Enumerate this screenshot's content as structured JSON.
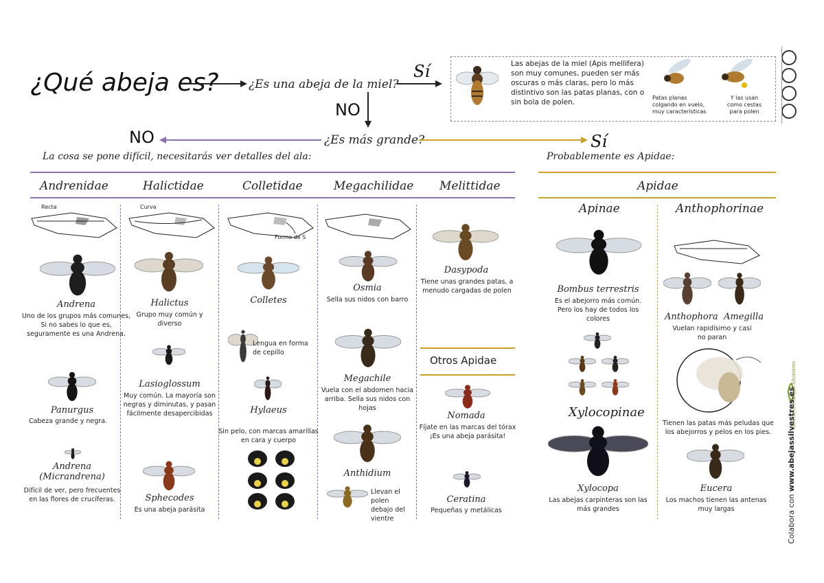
{
  "title": "¿Qué abeja es?",
  "q_honey": "¿Es una abeja de la miel?",
  "si1": "Sí",
  "no1": "NO",
  "q_bigger": "¿Es más grande?",
  "no2": "NO",
  "si2": "Sí",
  "left_note": "La cosa se pone difícil, necesitarás ver detalles del ala:",
  "right_note": "Probablemente es Apidae:",
  "honey_box": {
    "text": "Las abejas de la miel (Apis mellifera) son muy comunes, pueden ser más oscuras o más claras, pero lo más distintivo son las patas planas, con o sin bola de polen.",
    "cap1": "Patas planas colgando en vuelo, muy características",
    "cap2": "Y las usan como cestas para polen"
  },
  "families": {
    "andrenidae": "Andrenidae",
    "halictidae": "Halictidae",
    "colletidae": "Colletidae",
    "megachilidae": "Megachilidae",
    "melittidae": "Melittidae",
    "apidae": "Apidae",
    "otros": "Otros Apidae",
    "apinae": "Apinae",
    "anthophorinae": "Anthophorinae",
    "xylocopinae": "Xylocopinae"
  },
  "wing_labels": {
    "recta": "Recta",
    "curva": "Curva",
    "forma_s": "Forma de S"
  },
  "genera": {
    "andrena": {
      "name": "Andrena",
      "desc": "Uno de los grupos más comunes, Si no sabes lo que es, seguramente es una Andrena."
    },
    "panurgus": {
      "name": "Panurgus",
      "desc": "Cabeza grande y negra."
    },
    "micrandrena": {
      "name": "Andrena (Micrandrena)",
      "desc": "Difícil de ver, pero frecuentes en las flores de crucíferas."
    },
    "halictus": {
      "name": "Halictus",
      "desc": "Grupo muy común y diverso"
    },
    "lasioglossum": {
      "name": "Lasioglossum",
      "desc": "Muy común. La mayoría son negras y diminutas, y pasan fácilmente desapercibidas"
    },
    "sphecodes": {
      "name": "Sphecodes",
      "desc": "Es una abeja parásita"
    },
    "colletes": {
      "name": "Colletes",
      "desc": ""
    },
    "lengua": {
      "name": "",
      "desc": "Lengua en forma de cepillo"
    },
    "hylaeus": {
      "name": "Hylaeus",
      "desc": "Sin pelo, con marcas amarillas en cara y cuerpo"
    },
    "osmia": {
      "name": "Osmia",
      "desc": "Sella sus nidos con barro"
    },
    "megachile": {
      "name": "Megachile",
      "desc": "Vuela con el abdomen hacia arriba. Sella sus nidos con hojas"
    },
    "anthidium": {
      "name": "Anthidium",
      "desc": "Llevan el polen debajo del vientre"
    },
    "dasypoda": {
      "name": "Dasypoda",
      "desc": "Tiene unas grandes patas, a menudo cargadas de polen"
    },
    "nomada": {
      "name": "Nomada",
      "desc": "Fíjate en las marcas del tórax ¡Es una abeja parásita!"
    },
    "ceratina": {
      "name": "Ceratina",
      "desc": "Pequeñas y metálicas"
    },
    "bombus": {
      "name": "Bombus terrestris",
      "desc": "Es el abejorro más común. Pero los hay de todos los colores"
    },
    "xylocopa": {
      "name": "Xylocopa",
      "desc": "Las abejas carpinteras son las más grandes"
    },
    "anthophora": {
      "name": "Anthophora",
      "desc": ""
    },
    "amegilla": {
      "name": "Amegilla",
      "desc": "Vuelan rapidísimo y casi no paran"
    },
    "peludas": {
      "name": "",
      "desc": "Tienen las patas más peludas que los abejorros y pelos en los pies."
    },
    "eucera": {
      "name": "Eucera",
      "desc": "Los machos tienen las antenas muy largas"
    }
  },
  "side": {
    "url_prefix": "Colabora con ",
    "url": "www.abejassilvestres.es",
    "logo": "Asociación Abejas Silvestres"
  },
  "colors": {
    "purple": "#8a72b0",
    "gold": "#c9a227",
    "dark": "#222222"
  }
}
